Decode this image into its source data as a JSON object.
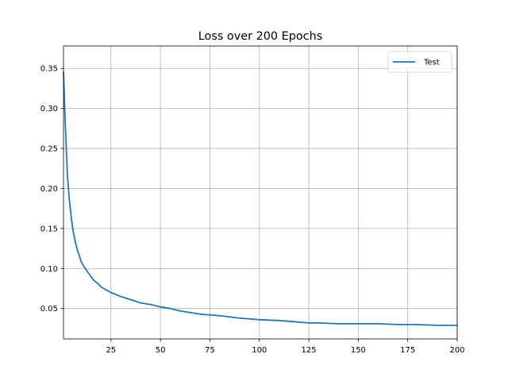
{
  "chart_data": {
    "type": "line",
    "title": "Loss over 200 Epochs",
    "xlabel": "",
    "ylabel": "",
    "xlim": [
      1,
      200
    ],
    "ylim": [
      0.012,
      0.378
    ],
    "xticks": [
      25,
      50,
      75,
      100,
      125,
      150,
      175,
      200
    ],
    "yticks": [
      0.05,
      0.1,
      0.15,
      0.2,
      0.25,
      0.3,
      0.35
    ],
    "ytick_labels": [
      "0.05",
      "0.10",
      "0.15",
      "0.20",
      "0.25",
      "0.30",
      "0.35"
    ],
    "grid": true,
    "legend": {
      "location": "upper right"
    },
    "series": [
      {
        "name": "Test",
        "color": "#1f77b4",
        "x": [
          1,
          2,
          3,
          4,
          5,
          6,
          7,
          8,
          9,
          10,
          12,
          14,
          16,
          18,
          20,
          22,
          25,
          30,
          35,
          40,
          45,
          50,
          55,
          60,
          65,
          70,
          75,
          80,
          90,
          100,
          110,
          120,
          125,
          130,
          140,
          150,
          160,
          170,
          180,
          190,
          200
        ],
        "y": [
          0.345,
          0.275,
          0.215,
          0.185,
          0.162,
          0.145,
          0.133,
          0.123,
          0.116,
          0.108,
          0.1,
          0.093,
          0.086,
          0.082,
          0.077,
          0.074,
          0.07,
          0.065,
          0.061,
          0.057,
          0.055,
          0.052,
          0.05,
          0.047,
          0.045,
          0.043,
          0.042,
          0.041,
          0.038,
          0.036,
          0.035,
          0.033,
          0.032,
          0.032,
          0.031,
          0.031,
          0.031,
          0.03,
          0.03,
          0.029,
          0.029
        ]
      }
    ]
  }
}
